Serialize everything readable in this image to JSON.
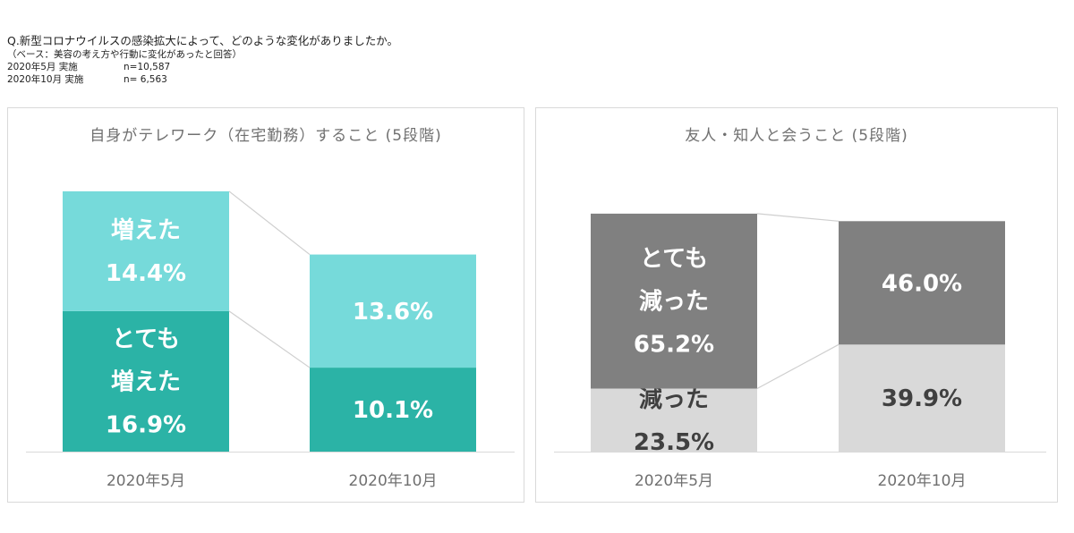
{
  "header": {
    "question": "Q.新型コロナウイルスの感染拡大によって、どのような変化がありましたか。",
    "base": "（ベース：美容の考え方や行動に変化があったと回答）",
    "samples": [
      {
        "label": "2020年5月 実施",
        "n": "n=10,587"
      },
      {
        "label": "2020年10月 実施",
        "n": "n= 6,563"
      }
    ]
  },
  "chart_data": [
    {
      "type": "bar",
      "stacked": true,
      "title": "自身がテレワーク（在宅勤務）すること (5段階)",
      "categories": [
        "2020年5月",
        "2020年10月"
      ],
      "series": [
        {
          "name": "とても増えた",
          "values": [
            16.9,
            10.1
          ],
          "color": "#2bb3a6",
          "text_color": "#ffffff",
          "labels": [
            [
              "とても",
              "増えた",
              "16.9%"
            ],
            [
              "10.1%"
            ]
          ]
        },
        {
          "name": "増えた",
          "values": [
            14.4,
            13.6
          ],
          "color": "#76dada",
          "text_color": "#ffffff",
          "labels": [
            [
              "増えた",
              "14.4%"
            ],
            [
              "13.6%"
            ]
          ]
        }
      ]
    },
    {
      "type": "bar",
      "stacked": true,
      "title": "友人・知人と会うこと (5段階)",
      "categories": [
        "2020年5月",
        "2020年10月"
      ],
      "series": [
        {
          "name": "減った",
          "values": [
            23.5,
            39.9
          ],
          "color": "#d9d9d9",
          "text_color": "#404040",
          "labels": [
            [
              "減った",
              "23.5%"
            ],
            [
              "39.9%"
            ]
          ]
        },
        {
          "name": "とても減った",
          "values": [
            65.2,
            46.0
          ],
          "color": "#808080",
          "text_color": "#ffffff",
          "labels": [
            [
              "とても",
              "減った",
              "65.2%"
            ],
            [
              "46.0%"
            ]
          ]
        }
      ]
    }
  ]
}
